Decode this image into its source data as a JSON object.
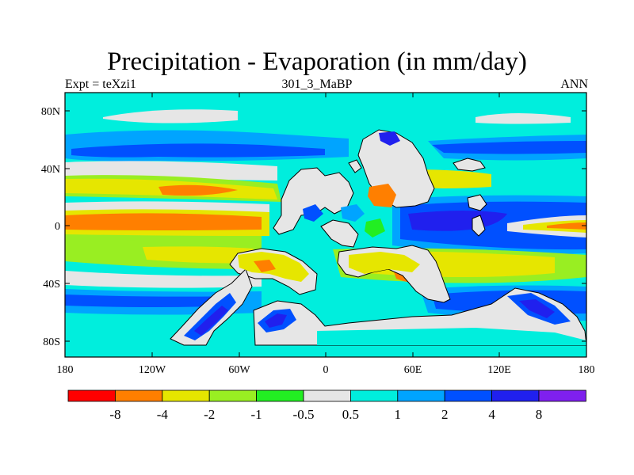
{
  "title": "Precipitation - Evaporation (in mm/day)",
  "left_string": "Expt = teXzi1",
  "center_string": "301_3_MaBP",
  "right_string": "ANN",
  "lat_ticks": [
    "80N",
    "40N",
    "0",
    "40S",
    "80S"
  ],
  "lon_ticks": [
    "180",
    "120W",
    "60W",
    "0",
    "60E",
    "120E",
    "180"
  ],
  "colorbar": {
    "colors": [
      "#ff0000",
      "#ff7f00",
      "#e6e600",
      "#99ee22",
      "#22ee22",
      "#e6e6e6",
      "#00eedd",
      "#00a4ff",
      "#0050ff",
      "#2020ee",
      "#7f20ee"
    ],
    "labels": [
      "-8",
      "-4",
      "-2",
      "-1",
      "-0.5",
      "0.5",
      "1",
      "2",
      "4",
      "8"
    ]
  },
  "colors": {
    "ocean_bg": "#00eedd",
    "land": "#e6e6e6",
    "coast": "#000000"
  }
}
